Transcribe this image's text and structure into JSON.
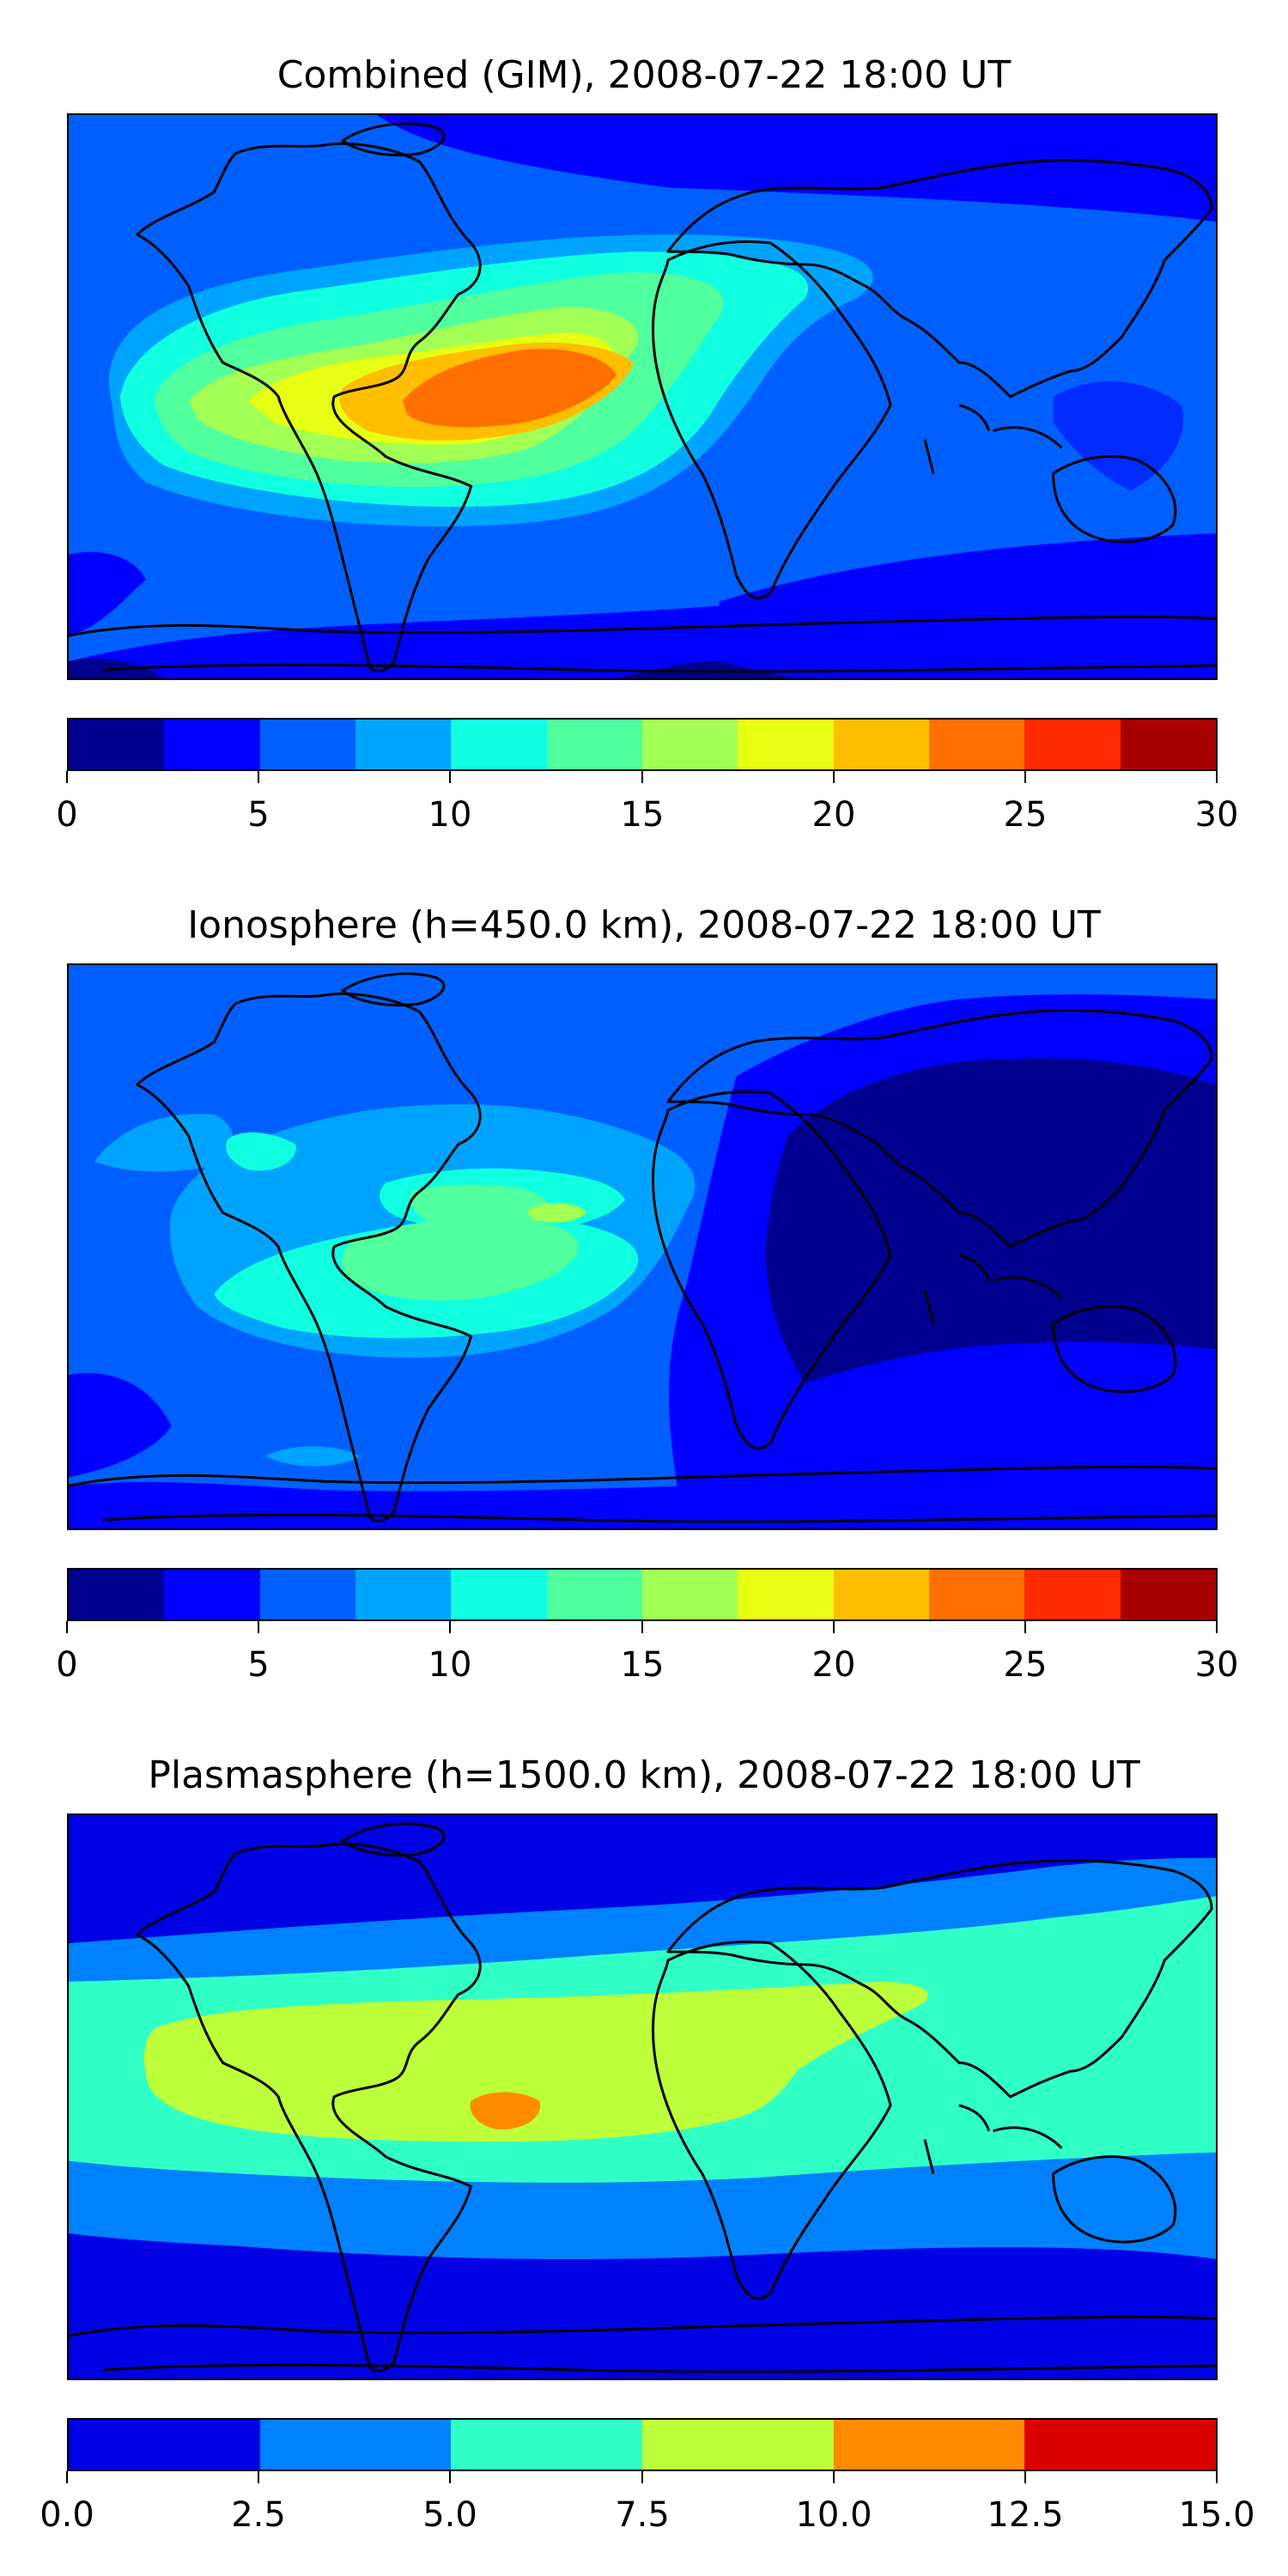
{
  "palette": {
    "tec12": [
      "#00008f",
      "#0000ff",
      "#0060ff",
      "#00a4ff",
      "#10ffe0",
      "#50ff9e",
      "#a2ff54",
      "#e6ff12",
      "#ffbe00",
      "#ff7000",
      "#ff2a00",
      "#a80000"
    ],
    "tec6": [
      "#0000e4",
      "#0081ff",
      "#30ffc6",
      "#bdff3a",
      "#ff8c00",
      "#da0000"
    ]
  },
  "panels": [
    {
      "title": "Combined (GIM), 2008-07-22 18:00 UT",
      "colorbar": {
        "ticks": [
          "0",
          "5",
          "10",
          "15",
          "20",
          "25",
          "30"
        ],
        "palette": "tec12"
      }
    },
    {
      "title": "Ionosphere  (h=450.0 km), 2008-07-22 18:00 UT",
      "colorbar": {
        "ticks": [
          "0",
          "5",
          "10",
          "15",
          "20",
          "25",
          "30"
        ],
        "palette": "tec12"
      }
    },
    {
      "title": "Plasmasphere (h=1500.0 km), 2008-07-22 18:00 UT",
      "colorbar": {
        "ticks": [
          "0.0",
          "2.5",
          "5.0",
          "7.5",
          "10.0",
          "12.5",
          "15.0"
        ],
        "palette": "tec6"
      }
    }
  ]
}
